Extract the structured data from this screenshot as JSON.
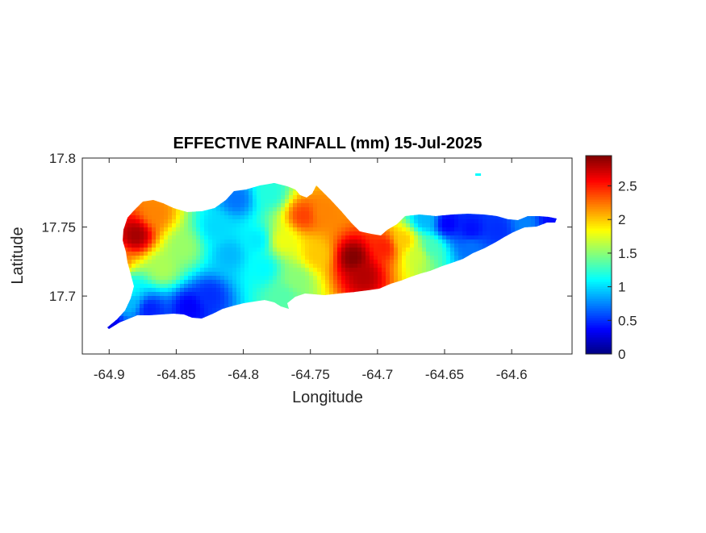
{
  "title": "EFFECTIVE RAINFALL (mm) 15-Jul-2025",
  "xlabel": "Longitude",
  "ylabel": "Latitude",
  "chart_data": {
    "type": "heatmap",
    "title": "EFFECTIVE RAINFALL (mm) 15-Jul-2025",
    "xlabel": "Longitude",
    "ylabel": "Latitude",
    "xlim": [
      -64.92,
      -64.555
    ],
    "ylim": [
      17.658,
      17.8
    ],
    "x_ticks": [
      "-64.9",
      "-64.85",
      "-64.8",
      "-64.75",
      "-64.7",
      "-64.65",
      "-64.6"
    ],
    "y_ticks": [
      "17.8",
      "17.75",
      "17.7"
    ],
    "colorbar": {
      "colormap": "jet",
      "range": [
        0,
        2.95
      ],
      "ticks": [
        "0",
        "0.5",
        "1",
        "1.5",
        "2",
        "2.5"
      ]
    },
    "rainfall_mm": [
      {
        "lon": -64.88,
        "lat": 17.744,
        "value": 2.85
      },
      {
        "lon": -64.865,
        "lat": 17.76,
        "value": 2.2
      },
      {
        "lon": -64.895,
        "lat": 17.725,
        "value": 2.3
      },
      {
        "lon": -64.845,
        "lat": 17.735,
        "value": 1.55
      },
      {
        "lon": -64.86,
        "lat": 17.72,
        "value": 1.6
      },
      {
        "lon": -64.885,
        "lat": 17.705,
        "value": 1.1
      },
      {
        "lon": -64.87,
        "lat": 17.69,
        "value": 0.45
      },
      {
        "lon": -64.885,
        "lat": 17.695,
        "value": 0.9
      },
      {
        "lon": -64.9,
        "lat": 17.68,
        "value": 0.3
      },
      {
        "lon": -64.84,
        "lat": 17.692,
        "value": 0.35
      },
      {
        "lon": -64.825,
        "lat": 17.7,
        "value": 0.5
      },
      {
        "lon": -64.82,
        "lat": 17.75,
        "value": 1.0
      },
      {
        "lon": -64.805,
        "lat": 17.77,
        "value": 0.7
      },
      {
        "lon": -64.81,
        "lat": 17.73,
        "value": 0.9
      },
      {
        "lon": -64.79,
        "lat": 17.74,
        "value": 1.05
      },
      {
        "lon": -64.785,
        "lat": 17.72,
        "value": 1.1
      },
      {
        "lon": -64.78,
        "lat": 17.775,
        "value": 1.2
      },
      {
        "lon": -64.77,
        "lat": 17.74,
        "value": 1.8
      },
      {
        "lon": -64.755,
        "lat": 17.758,
        "value": 2.4
      },
      {
        "lon": -64.74,
        "lat": 17.76,
        "value": 2.2
      },
      {
        "lon": -64.745,
        "lat": 17.73,
        "value": 2.0
      },
      {
        "lon": -64.76,
        "lat": 17.712,
        "value": 1.5
      },
      {
        "lon": -64.77,
        "lat": 17.7,
        "value": 1.35
      },
      {
        "lon": -64.718,
        "lat": 17.728,
        "value": 2.95
      },
      {
        "lon": -64.71,
        "lat": 17.715,
        "value": 2.8
      },
      {
        "lon": -64.695,
        "lat": 17.735,
        "value": 2.5
      },
      {
        "lon": -64.68,
        "lat": 17.74,
        "value": 2.0
      },
      {
        "lon": -64.67,
        "lat": 17.73,
        "value": 1.7
      },
      {
        "lon": -64.66,
        "lat": 17.735,
        "value": 1.3
      },
      {
        "lon": -64.665,
        "lat": 17.755,
        "value": 0.9
      },
      {
        "lon": -64.648,
        "lat": 17.752,
        "value": 0.35
      },
      {
        "lon": -64.63,
        "lat": 17.748,
        "value": 0.4
      },
      {
        "lon": -64.63,
        "lat": 17.735,
        "value": 0.7
      },
      {
        "lon": -64.61,
        "lat": 17.748,
        "value": 0.5
      },
      {
        "lon": -64.59,
        "lat": 17.752,
        "value": 0.75
      },
      {
        "lon": -64.57,
        "lat": 17.755,
        "value": 0.4
      },
      {
        "lon": -64.625,
        "lat": 17.788,
        "value": 1.1
      }
    ]
  }
}
